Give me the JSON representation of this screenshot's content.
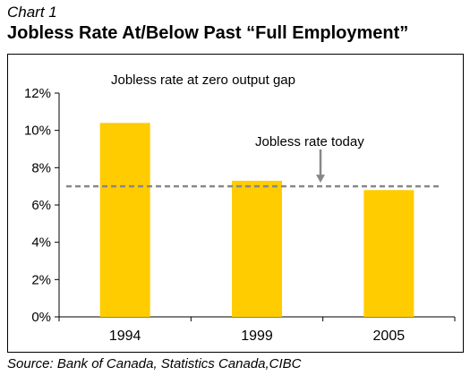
{
  "kicker": "Chart 1",
  "title": "Jobless Rate At/Below Past “Full Employment”",
  "source": "Source: Bank of Canada, Statistics Canada,CIBC",
  "chart_data": {
    "type": "bar",
    "categories": [
      "1994",
      "1999",
      "2005"
    ],
    "values": [
      10.4,
      7.3,
      6.8
    ],
    "ylim": [
      0,
      12
    ],
    "yticks": [
      0,
      2,
      4,
      6,
      8,
      10,
      12
    ],
    "ytick_labels": [
      "0%",
      "2%",
      "4%",
      "6%",
      "8%",
      "10%",
      "12%"
    ],
    "reference_line": {
      "value": 7.0,
      "style": "dashed",
      "color": "#888888"
    },
    "annotations": {
      "bars_label": "Jobless rate at zero output gap",
      "line_label": "Jobless rate today"
    },
    "bar_color": "#FFCC00",
    "grid": false
  }
}
